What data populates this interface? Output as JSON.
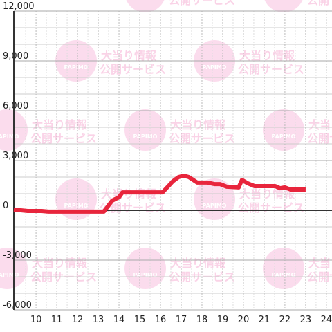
{
  "watermark": {
    "logo": "PAPIMO",
    "line1": "大当り情報",
    "line2": "公開サービス"
  },
  "chart_data": {
    "type": "line",
    "x": [
      8.93,
      9.6,
      10.27,
      10.6,
      11.6,
      13.27,
      13.67,
      14.0,
      14.17,
      16.1,
      16.6,
      16.87,
      17.13,
      17.37,
      17.77,
      18.27,
      18.6,
      18.87,
      19.2,
      19.77,
      19.93,
      20.2,
      20.53,
      21.53,
      21.77,
      22.0,
      22.27,
      23.0
    ],
    "series": [
      {
        "color": "#e8253c",
        "values": [
          40,
          -40,
          -40,
          -80,
          -80,
          -80,
          580,
          790,
          1080,
          1080,
          1750,
          2000,
          2080,
          2000,
          1670,
          1670,
          1580,
          1580,
          1420,
          1380,
          1830,
          1630,
          1460,
          1460,
          1330,
          1380,
          1250,
          1250
        ]
      }
    ],
    "xlim": [
      8.93,
      24.27
    ],
    "xticks": [
      10,
      11,
      12,
      13,
      14,
      15,
      16,
      17,
      18,
      19,
      20,
      21,
      22,
      23,
      24
    ],
    "ylim": [
      -6000,
      12000
    ],
    "yticks": [
      {
        "value": -6000,
        "label": "-6,000"
      },
      {
        "value": -3000,
        "label": "-3,000"
      },
      0,
      {
        "value": 3000,
        "label": "3,000"
      },
      {
        "value": 6000,
        "label": "6,000"
      },
      {
        "value": 9000,
        "label": "9,000"
      },
      {
        "value": 12000,
        "label": "12,000"
      }
    ],
    "grid": true
  }
}
